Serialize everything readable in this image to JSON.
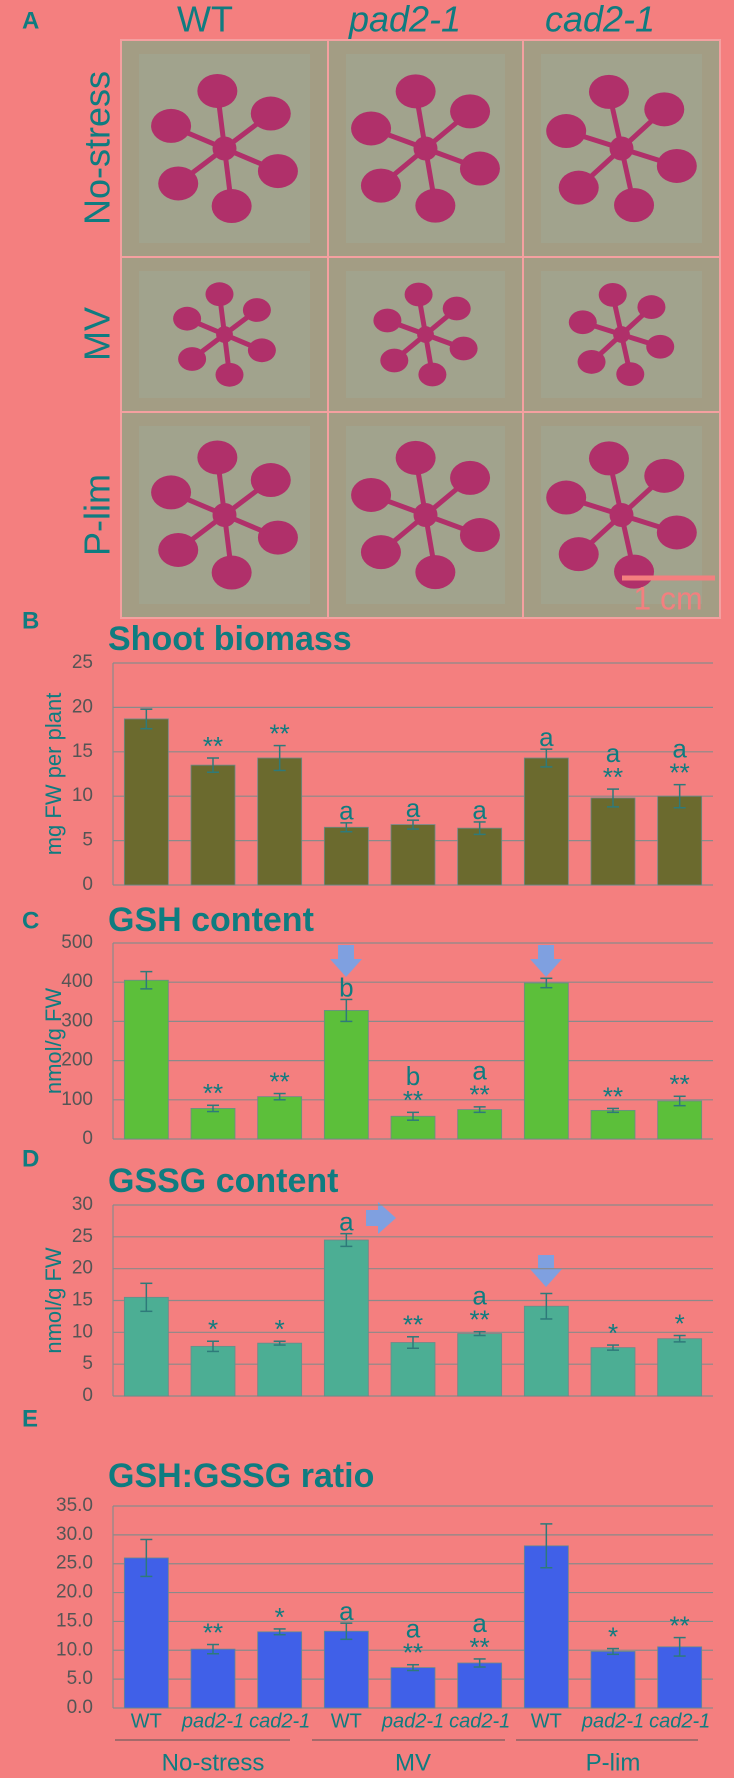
{
  "photo_panel": {
    "panel": "A",
    "columns": [
      "WT",
      "pad2-1",
      "cad2-1"
    ],
    "rows": [
      "No-stress",
      "MV",
      "P-lim"
    ],
    "scale_bar": "1 cm"
  },
  "chart_data": [
    {
      "type": "bar",
      "panel": "B",
      "title": "Shoot biomass",
      "y_label": "mg FW per plant",
      "color": "#6b6a2e",
      "values": [
        18.7,
        13.5,
        14.3,
        6.5,
        6.8,
        6.4,
        14.3,
        9.8,
        10.0
      ],
      "errors": [
        1.1,
        0.8,
        1.4,
        0.5,
        0.5,
        0.7,
        1.0,
        1.0,
        1.3
      ],
      "annotations": [
        null,
        [
          "**"
        ],
        [
          "**"
        ],
        [
          "a"
        ],
        [
          "a"
        ],
        [
          "a"
        ],
        [
          "a"
        ],
        [
          "a",
          "**"
        ],
        [
          "a",
          "**"
        ]
      ],
      "ylim": [
        0,
        25
      ],
      "yticks": [
        0,
        5,
        10,
        15,
        20,
        25
      ],
      "grid": true
    },
    {
      "type": "bar",
      "panel": "C",
      "title": "GSH content",
      "y_label": "nmol/g FW",
      "color": "#5cbf3a",
      "values": [
        405,
        78,
        108,
        328,
        58,
        75,
        398,
        73,
        97
      ],
      "errors": [
        22,
        8,
        8,
        28,
        10,
        7,
        12,
        5,
        12
      ],
      "annotations": [
        null,
        [
          "**"
        ],
        [
          "**"
        ],
        [
          "b"
        ],
        [
          "b",
          "**"
        ],
        [
          "a",
          "**"
        ],
        null,
        [
          "**"
        ],
        [
          "**"
        ]
      ],
      "ylim": [
        0,
        500
      ],
      "yticks": [
        0,
        100,
        200,
        300,
        400,
        500
      ],
      "grid": true
    },
    {
      "type": "bar",
      "panel": "D",
      "title": "GSSG content",
      "y_label": "nmol/g FW",
      "color": "#4cae94",
      "values": [
        15.5,
        7.8,
        8.3,
        24.5,
        8.4,
        9.8,
        14.1,
        7.6,
        9.0
      ],
      "errors": [
        2.2,
        0.8,
        0.3,
        1.0,
        0.9,
        0.3,
        2.0,
        0.4,
        0.5
      ],
      "annotations": [
        null,
        [
          "*"
        ],
        [
          "*"
        ],
        [
          "a"
        ],
        [
          "**"
        ],
        [
          "a",
          "**"
        ],
        null,
        [
          "*"
        ],
        [
          "*"
        ]
      ],
      "ylim": [
        0,
        30
      ],
      "yticks": [
        0,
        5,
        10,
        15,
        20,
        25,
        30
      ],
      "grid": true
    },
    {
      "type": "bar",
      "panel": "E",
      "title": "GSH:GSSG ratio",
      "color": "#4060e8",
      "categories": [
        "WT",
        "pad2-1",
        "cad2-1",
        "WT",
        "pad2-1",
        "cad2-1",
        "WT",
        "pad2-1",
        "cad2-1"
      ],
      "groups": [
        "No-stress",
        "MV",
        "P-lim"
      ],
      "values": [
        26.0,
        10.2,
        13.2,
        13.3,
        7.0,
        7.8,
        28.1,
        9.8,
        10.6
      ],
      "errors": [
        3.2,
        0.8,
        0.5,
        1.4,
        0.5,
        0.7,
        3.8,
        0.5,
        1.6
      ],
      "annotations": [
        null,
        [
          "**"
        ],
        [
          "*"
        ],
        [
          "a"
        ],
        [
          "a",
          "**"
        ],
        [
          "a",
          "**"
        ],
        null,
        [
          "*"
        ],
        [
          "**"
        ]
      ],
      "ylim": [
        0,
        35
      ],
      "yticks": [
        {
          "value": 0,
          "label": "0.0"
        },
        {
          "value": 5,
          "label": "5.0"
        },
        {
          "value": 10,
          "label": "10.0"
        },
        {
          "value": 15,
          "label": "15.0"
        },
        {
          "value": 20,
          "label": "20.0"
        },
        {
          "value": 25,
          "label": "25.0"
        },
        {
          "value": 30,
          "label": "30.0"
        },
        {
          "value": 35,
          "label": "35.0"
        }
      ],
      "grid": true
    }
  ]
}
